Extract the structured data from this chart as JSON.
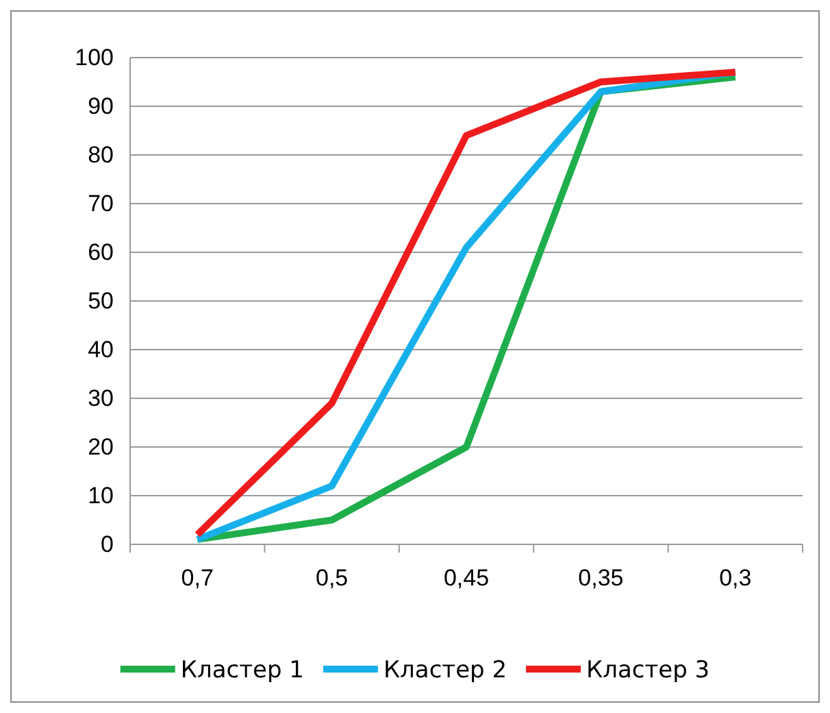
{
  "chart_data": {
    "type": "line",
    "categories": [
      "0,7",
      "0,5",
      "0,45",
      "0,35",
      "0,3"
    ],
    "series": [
      {
        "name": "Кластер 1",
        "color": "#1fae4b",
        "values": [
          1,
          5,
          20,
          93,
          96
        ]
      },
      {
        "name": "Кластер 2",
        "color": "#17b0ea",
        "values": [
          1,
          12,
          61,
          93,
          97
        ]
      },
      {
        "name": "Кластер 3",
        "color": "#ee1c1c",
        "values": [
          2,
          29,
          84,
          95,
          97
        ]
      }
    ],
    "ylim": [
      0,
      100
    ],
    "yticks": [
      0,
      10,
      20,
      30,
      40,
      50,
      60,
      70,
      80,
      90,
      100
    ],
    "grid": "y",
    "legend": "bottom",
    "marker": "none",
    "line_style": "solid"
  }
}
